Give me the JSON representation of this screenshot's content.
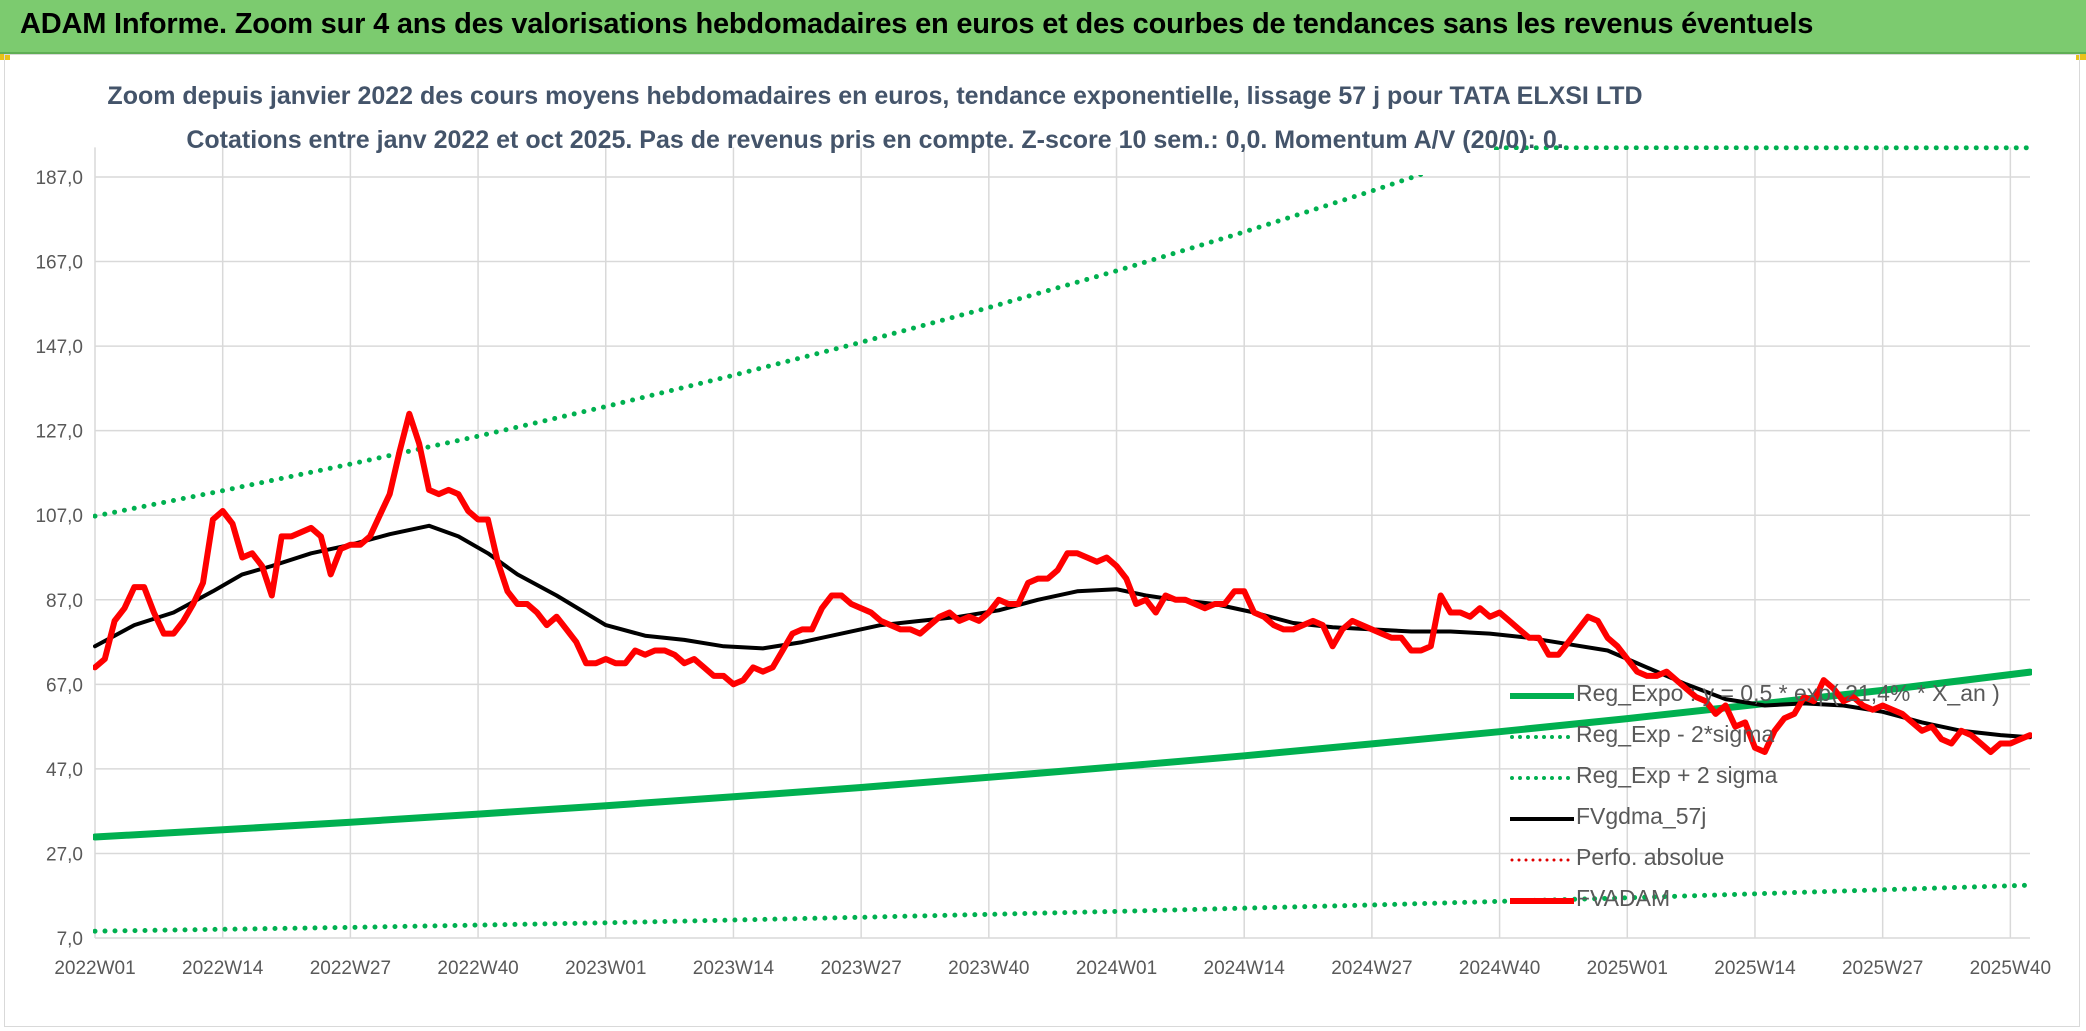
{
  "banner": {
    "title": "ADAM Informe. Zoom sur 4 ans des valorisations hebdomadaires en euros et des courbes de tendances sans les revenus éventuels"
  },
  "colors": {
    "banner_bg": "#7ccb6f",
    "reg_expo": "#00b050",
    "bands": "#00b050",
    "fvgdma": "#000000",
    "perfo": "#e00000",
    "fvadam": "#ff0000",
    "grid": "#d9d9d9",
    "text": "#595959",
    "title_text": "#44546a"
  },
  "chart_data": {
    "type": "line",
    "title": "Zoom depuis janvier 2022 des cours moyens hebdomadaires en euros, tendance exponentielle, lissage 57 j pour TATA ELXSI LTD",
    "subtitle": "Cotations entre janv 2022 et oct 2025. Pas de revenus pris en compte. Z-score 10 sem.: 0,0. Momentum A/V (20/0): 0.",
    "xlabel": "",
    "ylabel": "",
    "ylim": [
      7,
      194
    ],
    "y_ticks": [
      "187,0",
      "167,0",
      "147,0",
      "127,0",
      "107,0",
      "87,0",
      "67,0",
      "47,0",
      "27,0",
      "7,0"
    ],
    "y_tick_values": [
      187,
      167,
      147,
      127,
      107,
      87,
      67,
      47,
      27,
      7
    ],
    "x_range": [
      0,
      197
    ],
    "x_ticks": [
      "2022W01",
      "2022W14",
      "2022W27",
      "2022W40",
      "2023W01",
      "2023W14",
      "2023W27",
      "2023W40",
      "2024W01",
      "2024W14",
      "2024W27",
      "2024W40",
      "2025W01",
      "2025W14",
      "2025W27",
      "2025W40"
    ],
    "x_tick_weeks": [
      0,
      13,
      26,
      39,
      52,
      65,
      78,
      91,
      104,
      117,
      130,
      143,
      156,
      169,
      182,
      195
    ],
    "series": [
      {
        "name": "Reg_Expo : y = 0,5 * exp( 21,4% * X_an )",
        "style": "solid-thick",
        "points": [
          [
            0,
            30.9
          ],
          [
            13,
            32.6
          ],
          [
            26,
            34.4
          ],
          [
            39,
            36.3
          ],
          [
            52,
            38.3
          ],
          [
            65,
            40.4
          ],
          [
            78,
            42.6
          ],
          [
            91,
            45.0
          ],
          [
            104,
            47.5
          ],
          [
            117,
            50.1
          ],
          [
            130,
            52.9
          ],
          [
            143,
            55.8
          ],
          [
            156,
            58.9
          ],
          [
            169,
            62.2
          ],
          [
            182,
            65.6
          ],
          [
            197,
            69.9
          ]
        ]
      },
      {
        "name": "Reg_Exp - 2*sigma",
        "style": "dotted",
        "points": [
          [
            0,
            8.6
          ],
          [
            26,
            9.5
          ],
          [
            52,
            10.6
          ],
          [
            78,
            11.9
          ],
          [
            104,
            13.3
          ],
          [
            130,
            14.8
          ],
          [
            156,
            16.5
          ],
          [
            182,
            18.4
          ],
          [
            197,
            19.5
          ]
        ]
      },
      {
        "name": "Reg_Exp + 2 sigma",
        "style": "dotted",
        "points": [
          [
            0,
            106.8
          ],
          [
            13,
            112.8
          ],
          [
            26,
            119.1
          ],
          [
            39,
            125.7
          ],
          [
            52,
            132.7
          ],
          [
            65,
            140.1
          ],
          [
            78,
            147.9
          ],
          [
            91,
            156.1
          ],
          [
            104,
            164.8
          ],
          [
            117,
            174.0
          ],
          [
            130,
            183.7
          ],
          [
            143,
            193.9
          ],
          [
            178,
            193.9
          ],
          [
            197,
            193.9
          ]
        ]
      },
      {
        "name": "FVgdma_57j",
        "style": "solid",
        "points": [
          [
            0,
            76
          ],
          [
            4,
            81
          ],
          [
            8,
            84
          ],
          [
            12,
            89
          ],
          [
            15,
            93
          ],
          [
            18,
            95
          ],
          [
            22,
            98
          ],
          [
            26,
            100
          ],
          [
            30,
            102.5
          ],
          [
            34,
            104.5
          ],
          [
            37,
            102
          ],
          [
            40,
            98
          ],
          [
            43,
            93
          ],
          [
            47,
            88
          ],
          [
            52,
            81
          ],
          [
            56,
            78.5
          ],
          [
            60,
            77.5
          ],
          [
            64,
            76
          ],
          [
            68,
            75.5
          ],
          [
            72,
            77
          ],
          [
            76,
            79
          ],
          [
            80,
            81
          ],
          [
            84,
            82
          ],
          [
            88,
            83
          ],
          [
            92,
            84.5
          ],
          [
            96,
            87
          ],
          [
            100,
            89
          ],
          [
            104,
            89.5
          ],
          [
            107,
            88
          ],
          [
            110,
            87
          ],
          [
            114,
            86
          ],
          [
            118,
            84
          ],
          [
            122,
            81.5
          ],
          [
            126,
            80.5
          ],
          [
            130,
            80
          ],
          [
            134,
            79.5
          ],
          [
            138,
            79.5
          ],
          [
            142,
            79
          ],
          [
            146,
            78
          ],
          [
            150,
            76.5
          ],
          [
            154,
            75
          ],
          [
            158,
            71
          ],
          [
            162,
            67
          ],
          [
            166,
            63.5
          ],
          [
            170,
            62
          ],
          [
            174,
            62.5
          ],
          [
            178,
            62
          ],
          [
            182,
            60.5
          ],
          [
            186,
            58
          ],
          [
            190,
            56
          ],
          [
            194,
            55
          ],
          [
            197,
            54.5
          ]
        ]
      },
      {
        "name": "Perfo. absolue",
        "style": "dotted",
        "points": []
      },
      {
        "name": "FVADAM",
        "style": "solid-thick",
        "points": [
          [
            0,
            71
          ],
          [
            1,
            73
          ],
          [
            2,
            82
          ],
          [
            3,
            85
          ],
          [
            4,
            90
          ],
          [
            5,
            90
          ],
          [
            6,
            84
          ],
          [
            7,
            79
          ],
          [
            8,
            79
          ],
          [
            9,
            82
          ],
          [
            10,
            86
          ],
          [
            11,
            91
          ],
          [
            12,
            106
          ],
          [
            13,
            108
          ],
          [
            14,
            105
          ],
          [
            15,
            97
          ],
          [
            16,
            98
          ],
          [
            17,
            95
          ],
          [
            18,
            88
          ],
          [
            19,
            102
          ],
          [
            20,
            102
          ],
          [
            21,
            103
          ],
          [
            22,
            104
          ],
          [
            23,
            102
          ],
          [
            24,
            93
          ],
          [
            25,
            99
          ],
          [
            26,
            100
          ],
          [
            27,
            100
          ],
          [
            28,
            102
          ],
          [
            29,
            107
          ],
          [
            30,
            112
          ],
          [
            31,
            122
          ],
          [
            32,
            131
          ],
          [
            33,
            124
          ],
          [
            34,
            113
          ],
          [
            35,
            112
          ],
          [
            36,
            113
          ],
          [
            37,
            112
          ],
          [
            38,
            108
          ],
          [
            39,
            106
          ],
          [
            40,
            106
          ],
          [
            41,
            96
          ],
          [
            42,
            89
          ],
          [
            43,
            86
          ],
          [
            44,
            86
          ],
          [
            45,
            84
          ],
          [
            46,
            81
          ],
          [
            47,
            83
          ],
          [
            48,
            80
          ],
          [
            49,
            77
          ],
          [
            50,
            72
          ],
          [
            51,
            72
          ],
          [
            52,
            73
          ],
          [
            53,
            72
          ],
          [
            54,
            72
          ],
          [
            55,
            75
          ],
          [
            56,
            74
          ],
          [
            57,
            75
          ],
          [
            58,
            75
          ],
          [
            59,
            74
          ],
          [
            60,
            72
          ],
          [
            61,
            73
          ],
          [
            62,
            71
          ],
          [
            63,
            69
          ],
          [
            64,
            69
          ],
          [
            65,
            67
          ],
          [
            66,
            68
          ],
          [
            67,
            71
          ],
          [
            68,
            70
          ],
          [
            69,
            71
          ],
          [
            70,
            75
          ],
          [
            71,
            79
          ],
          [
            72,
            80
          ],
          [
            73,
            80
          ],
          [
            74,
            85
          ],
          [
            75,
            88
          ],
          [
            76,
            88
          ],
          [
            77,
            86
          ],
          [
            78,
            85
          ],
          [
            79,
            84
          ],
          [
            80,
            82
          ],
          [
            81,
            81
          ],
          [
            82,
            80
          ],
          [
            83,
            80
          ],
          [
            84,
            79
          ],
          [
            85,
            81
          ],
          [
            86,
            83
          ],
          [
            87,
            84
          ],
          [
            88,
            82
          ],
          [
            89,
            83
          ],
          [
            90,
            82
          ],
          [
            91,
            84
          ],
          [
            92,
            87
          ],
          [
            93,
            86
          ],
          [
            94,
            86
          ],
          [
            95,
            91
          ],
          [
            96,
            92
          ],
          [
            97,
            92
          ],
          [
            98,
            94
          ],
          [
            99,
            98
          ],
          [
            100,
            98
          ],
          [
            101,
            97
          ],
          [
            102,
            96
          ],
          [
            103,
            97
          ],
          [
            104,
            95
          ],
          [
            105,
            92
          ],
          [
            106,
            86
          ],
          [
            107,
            87
          ],
          [
            108,
            84
          ],
          [
            109,
            88
          ],
          [
            110,
            87
          ],
          [
            111,
            87
          ],
          [
            112,
            86
          ],
          [
            113,
            85
          ],
          [
            114,
            86
          ],
          [
            115,
            86
          ],
          [
            116,
            89
          ],
          [
            117,
            89
          ],
          [
            118,
            84
          ],
          [
            119,
            83
          ],
          [
            120,
            81
          ],
          [
            121,
            80
          ],
          [
            122,
            80
          ],
          [
            123,
            81
          ],
          [
            124,
            82
          ],
          [
            125,
            81
          ],
          [
            126,
            76
          ],
          [
            127,
            80
          ],
          [
            128,
            82
          ],
          [
            129,
            81
          ],
          [
            130,
            80
          ],
          [
            131,
            79
          ],
          [
            132,
            78
          ],
          [
            133,
            78
          ],
          [
            134,
            75
          ],
          [
            135,
            75
          ],
          [
            136,
            76
          ],
          [
            137,
            88
          ],
          [
            138,
            84
          ],
          [
            139,
            84
          ],
          [
            140,
            83
          ],
          [
            141,
            85
          ],
          [
            142,
            83
          ],
          [
            143,
            84
          ],
          [
            144,
            82
          ],
          [
            145,
            80
          ],
          [
            146,
            78
          ],
          [
            147,
            78
          ],
          [
            148,
            74
          ],
          [
            149,
            74
          ],
          [
            150,
            77
          ],
          [
            151,
            80
          ],
          [
            152,
            83
          ],
          [
            153,
            82
          ],
          [
            154,
            78
          ],
          [
            155,
            76
          ],
          [
            156,
            73
          ],
          [
            157,
            70
          ],
          [
            158,
            69
          ],
          [
            159,
            69
          ],
          [
            160,
            70
          ],
          [
            161,
            68
          ],
          [
            162,
            66
          ],
          [
            163,
            64
          ],
          [
            164,
            63
          ],
          [
            165,
            60
          ],
          [
            166,
            62
          ],
          [
            167,
            57
          ],
          [
            168,
            58
          ],
          [
            169,
            52
          ],
          [
            170,
            51
          ],
          [
            171,
            56
          ],
          [
            172,
            59
          ],
          [
            173,
            60
          ],
          [
            174,
            64
          ],
          [
            175,
            63
          ],
          [
            176,
            68
          ],
          [
            177,
            66
          ],
          [
            178,
            63
          ],
          [
            179,
            64
          ],
          [
            180,
            62
          ],
          [
            181,
            61
          ],
          [
            182,
            62
          ],
          [
            183,
            61
          ],
          [
            184,
            60
          ],
          [
            185,
            58
          ],
          [
            186,
            56
          ],
          [
            187,
            57
          ],
          [
            188,
            54
          ],
          [
            189,
            53
          ],
          [
            190,
            56
          ],
          [
            191,
            55
          ],
          [
            192,
            53
          ],
          [
            193,
            51
          ],
          [
            194,
            53
          ],
          [
            195,
            53
          ],
          [
            196,
            54
          ],
          [
            197,
            55
          ]
        ]
      }
    ]
  }
}
